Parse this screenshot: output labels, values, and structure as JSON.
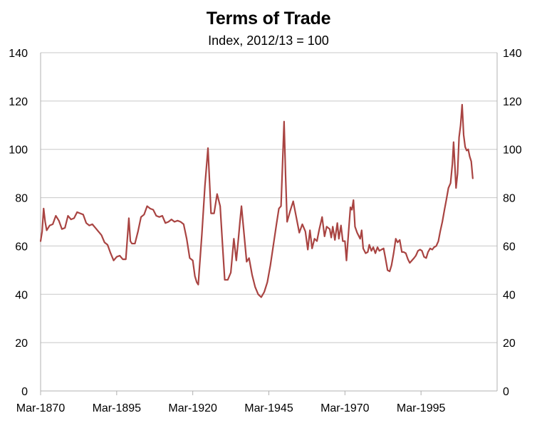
{
  "chart_data": {
    "type": "line",
    "title": "Terms of Trade",
    "subtitle": "Index, 2012/13 = 100",
    "xlabel": "",
    "ylabel": "",
    "x_range": [
      1870,
      2020
    ],
    "ylim": [
      0,
      140
    ],
    "y_ticks": [
      0,
      20,
      40,
      60,
      80,
      100,
      120,
      140
    ],
    "y_tick_labels": [
      "0",
      "20",
      "40",
      "60",
      "80",
      "100",
      "120",
      "140"
    ],
    "x_ticks": [
      1870,
      1895,
      1920,
      1945,
      1970,
      1995
    ],
    "x_tick_labels": [
      "Mar-1870",
      "Mar-1895",
      "Mar-1920",
      "Mar-1945",
      "Mar-1970",
      "Mar-1995"
    ],
    "grid": "horizontal",
    "legend": "none",
    "series": [
      {
        "color": "#a94442",
        "points": [
          [
            1870.0,
            62
          ],
          [
            1870.5,
            66
          ],
          [
            1871.0,
            75.5
          ],
          [
            1871.5,
            70
          ],
          [
            1872.0,
            66.5
          ],
          [
            1873.0,
            68.5
          ],
          [
            1874.0,
            69
          ],
          [
            1875.0,
            72.5
          ],
          [
            1876.0,
            70.5
          ],
          [
            1877.0,
            67
          ],
          [
            1878.0,
            67.5
          ],
          [
            1879.0,
            72.5
          ],
          [
            1880.0,
            71
          ],
          [
            1881.0,
            71.5
          ],
          [
            1882.0,
            74
          ],
          [
            1883.0,
            73.5
          ],
          [
            1884.0,
            73
          ],
          [
            1885.0,
            69.5
          ],
          [
            1886.0,
            68.5
          ],
          [
            1887.0,
            69
          ],
          [
            1888.0,
            67.5
          ],
          [
            1889.0,
            66
          ],
          [
            1890.0,
            64.5
          ],
          [
            1891.0,
            61.5
          ],
          [
            1892.0,
            60.5
          ],
          [
            1893.0,
            57
          ],
          [
            1894.0,
            54
          ],
          [
            1895.0,
            55.5
          ],
          [
            1896.0,
            56
          ],
          [
            1897.0,
            54.5
          ],
          [
            1898.0,
            54.5
          ],
          [
            1899.0,
            71.5
          ],
          [
            1899.5,
            62
          ],
          [
            1900.0,
            61
          ],
          [
            1901.0,
            61
          ],
          [
            1902.0,
            66
          ],
          [
            1903.0,
            72
          ],
          [
            1904.0,
            73
          ],
          [
            1905.0,
            76.5
          ],
          [
            1906.0,
            75.5
          ],
          [
            1907.0,
            75
          ],
          [
            1908.0,
            72.5
          ],
          [
            1909.0,
            72
          ],
          [
            1910.0,
            72.5
          ],
          [
            1911.0,
            69.5
          ],
          [
            1912.0,
            70
          ],
          [
            1913.0,
            71
          ],
          [
            1914.0,
            70
          ],
          [
            1915.0,
            70.5
          ],
          [
            1916.0,
            70
          ],
          [
            1917.0,
            69
          ],
          [
            1918.0,
            63
          ],
          [
            1919.0,
            55
          ],
          [
            1920.0,
            54
          ],
          [
            1920.7,
            47.5
          ],
          [
            1921.3,
            45
          ],
          [
            1921.8,
            44
          ],
          [
            1923.0,
            65
          ],
          [
            1924.0,
            85
          ],
          [
            1925.0,
            100.5
          ],
          [
            1926.0,
            73.5
          ],
          [
            1927.0,
            73.5
          ],
          [
            1928.0,
            81.5
          ],
          [
            1929.0,
            76.5
          ],
          [
            1929.8,
            60
          ],
          [
            1930.5,
            46
          ],
          [
            1931.5,
            46
          ],
          [
            1932.5,
            49
          ],
          [
            1933.5,
            63
          ],
          [
            1934.3,
            54
          ],
          [
            1935.0,
            63
          ],
          [
            1935.5,
            70
          ],
          [
            1936.0,
            76.5
          ],
          [
            1937.0,
            63
          ],
          [
            1937.7,
            53.5
          ],
          [
            1938.5,
            55
          ],
          [
            1939.5,
            48
          ],
          [
            1940.5,
            43
          ],
          [
            1941.5,
            40
          ],
          [
            1942.5,
            38.8
          ],
          [
            1943.5,
            41
          ],
          [
            1944.5,
            45
          ],
          [
            1945.5,
            52
          ],
          [
            1946.5,
            60.5
          ],
          [
            1947.5,
            69
          ],
          [
            1948.3,
            75.5
          ],
          [
            1949.0,
            76.5
          ],
          [
            1949.5,
            94
          ],
          [
            1950.0,
            111.5
          ],
          [
            1950.5,
            89
          ],
          [
            1951.0,
            70
          ],
          [
            1952.0,
            74.5
          ],
          [
            1953.0,
            78.5
          ],
          [
            1954.0,
            72
          ],
          [
            1955.0,
            65.5
          ],
          [
            1956.0,
            69
          ],
          [
            1957.0,
            66
          ],
          [
            1957.8,
            58.5
          ],
          [
            1958.5,
            66.5
          ],
          [
            1959.2,
            59
          ],
          [
            1960.0,
            63
          ],
          [
            1960.8,
            62
          ],
          [
            1961.5,
            66.5
          ],
          [
            1962.5,
            72
          ],
          [
            1963.3,
            64
          ],
          [
            1964.0,
            68
          ],
          [
            1965.0,
            67
          ],
          [
            1965.5,
            63.5
          ],
          [
            1966.0,
            68
          ],
          [
            1966.7,
            62.5
          ],
          [
            1967.5,
            69.5
          ],
          [
            1968.0,
            63
          ],
          [
            1968.7,
            68.5
          ],
          [
            1969.3,
            62
          ],
          [
            1970.0,
            62
          ],
          [
            1970.5,
            54
          ],
          [
            1971.2,
            66
          ],
          [
            1971.8,
            76
          ],
          [
            1972.3,
            75
          ],
          [
            1972.8,
            79
          ],
          [
            1973.3,
            68
          ],
          [
            1974.0,
            65.5
          ],
          [
            1975.0,
            63
          ],
          [
            1975.5,
            66.5
          ],
          [
            1976.0,
            59
          ],
          [
            1976.8,
            57
          ],
          [
            1977.5,
            57.5
          ],
          [
            1978.0,
            60.5
          ],
          [
            1978.7,
            58
          ],
          [
            1979.3,
            59.5
          ],
          [
            1980.0,
            57
          ],
          [
            1980.7,
            59.5
          ],
          [
            1981.3,
            58
          ],
          [
            1982.0,
            58.5
          ],
          [
            1982.7,
            59
          ],
          [
            1983.3,
            55
          ],
          [
            1984.0,
            50
          ],
          [
            1984.7,
            49.5
          ],
          [
            1985.3,
            52
          ],
          [
            1986.0,
            57
          ],
          [
            1986.7,
            63
          ],
          [
            1987.3,
            61.5
          ],
          [
            1988.0,
            62.5
          ],
          [
            1988.7,
            57.5
          ],
          [
            1989.3,
            57.5
          ],
          [
            1990.0,
            57
          ],
          [
            1990.7,
            54.5
          ],
          [
            1991.3,
            53
          ],
          [
            1992.0,
            54
          ],
          [
            1992.7,
            55
          ],
          [
            1993.3,
            56
          ],
          [
            1994.0,
            58
          ],
          [
            1994.7,
            58.5
          ],
          [
            1995.3,
            58
          ],
          [
            1996.0,
            55.5
          ],
          [
            1996.7,
            55
          ],
          [
            1997.3,
            57.5
          ],
          [
            1998.0,
            59
          ],
          [
            1998.7,
            58.5
          ],
          [
            1999.3,
            59.5
          ],
          [
            2000.0,
            60
          ],
          [
            2000.7,
            62
          ],
          [
            2001.3,
            66
          ],
          [
            2002.0,
            70
          ],
          [
            2002.7,
            75
          ],
          [
            2003.3,
            79
          ],
          [
            2004.0,
            84
          ],
          [
            2004.7,
            86
          ],
          [
            2005.3,
            94
          ],
          [
            2005.7,
            103
          ],
          [
            2006.0,
            96
          ],
          [
            2006.5,
            84
          ],
          [
            2007.0,
            90
          ],
          [
            2007.5,
            105
          ],
          [
            2008.0,
            110
          ],
          [
            2008.5,
            118.5
          ],
          [
            2009.0,
            106
          ],
          [
            2009.5,
            101
          ],
          [
            2010.0,
            99.5
          ],
          [
            2010.5,
            100
          ],
          [
            2011.0,
            97
          ],
          [
            2011.5,
            95
          ],
          [
            2012.0,
            88
          ]
        ]
      }
    ]
  }
}
